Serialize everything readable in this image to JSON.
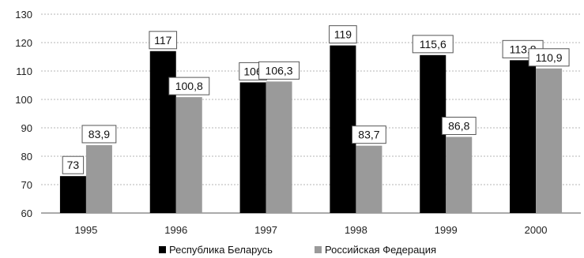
{
  "chart_data": {
    "type": "bar",
    "categories": [
      "1995",
      "1996",
      "1997",
      "1998",
      "1999",
      "2000"
    ],
    "series": [
      {
        "name": "Республика Беларусь",
        "values": [
          73,
          117,
          106,
          119,
          115.6,
          113.8
        ],
        "labels": [
          "73",
          "117",
          "106",
          "119",
          "115,6",
          "113,8"
        ],
        "color": "#000000"
      },
      {
        "name": "Российская Федерация",
        "values": [
          83.9,
          100.8,
          106.3,
          83.7,
          86.8,
          110.9
        ],
        "labels": [
          "83,9",
          "100,8",
          "106,3",
          "83,7",
          "86,8",
          "110,9"
        ],
        "color": "#9a9a9a"
      }
    ],
    "yticks": [
      "60",
      "70",
      "80",
      "90",
      "100",
      "110",
      "120",
      "130"
    ],
    "ylim": [
      60,
      130
    ],
    "grid": true,
    "legend_position": "bottom"
  }
}
